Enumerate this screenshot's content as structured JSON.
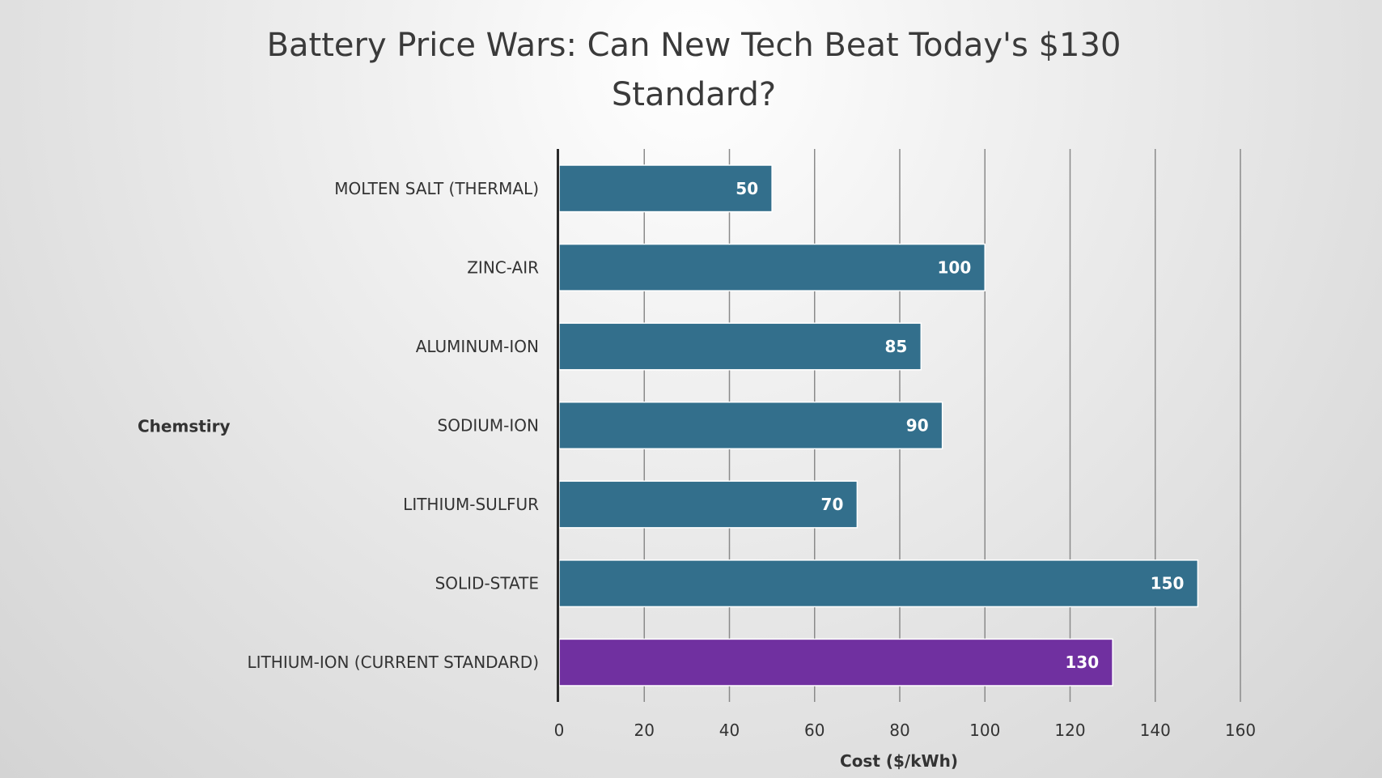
{
  "chart_data": {
    "type": "bar",
    "orientation": "horizontal",
    "title": "Battery Price Wars: Can New Tech Beat Today's $130 Standard?",
    "xlabel": "Cost ($/kWh)",
    "ylabel": "Chemstiry",
    "categories": [
      "MOLTEN SALT (THERMAL)",
      "ZINC-AIR",
      "ALUMINUM-ION",
      "SODIUM-ION",
      "LITHIUM-SULFUR",
      "SOLID-STATE",
      "LITHIUM-ION (CURRENT STANDARD)"
    ],
    "values": [
      50,
      100,
      85,
      90,
      70,
      150,
      130
    ],
    "bar_colors": [
      "#336f8c",
      "#336f8c",
      "#336f8c",
      "#336f8c",
      "#336f8c",
      "#336f8c",
      "#7030a0"
    ],
    "xlim": [
      0,
      160
    ],
    "xticks": [
      "0",
      "20",
      "40",
      "60",
      "80",
      "100",
      "120",
      "140",
      "160"
    ],
    "data_labels": [
      "50",
      "100",
      "85",
      "90",
      "70",
      "150",
      "130"
    ],
    "grid": "vertical",
    "legend": "none"
  }
}
